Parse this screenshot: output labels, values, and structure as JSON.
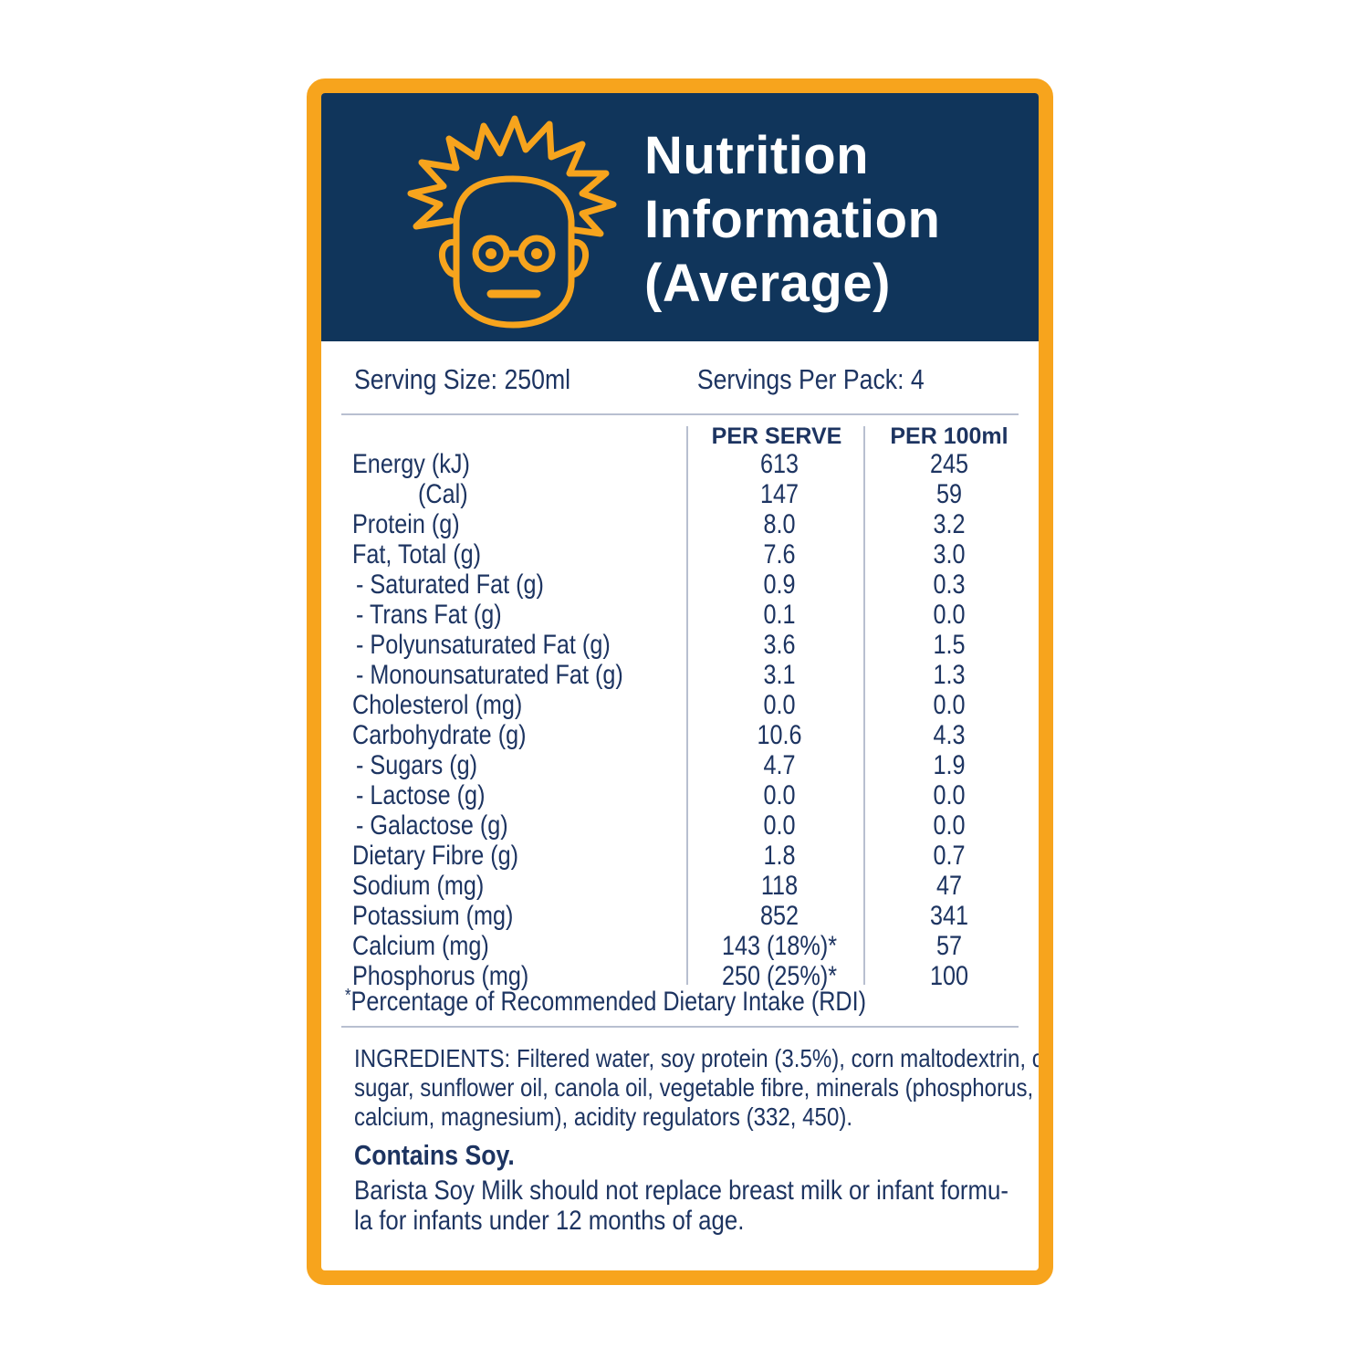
{
  "header": {
    "title_lines": [
      "Nutrition",
      "Information",
      "(Average)"
    ],
    "mascot_icon": "scientist-face-icon"
  },
  "colors": {
    "border": "#f7a41d",
    "header_bg": "#10355b",
    "text": "#1d3461",
    "mascot": "#f7a41d"
  },
  "serving": {
    "size": "Serving Size: 250ml",
    "per_pack": "Servings Per Pack: 4"
  },
  "columns": {
    "per_serve": "PER SERVE",
    "per_100ml": "PER 100ml"
  },
  "nutrients": [
    {
      "name": "Energy (kJ)",
      "per_serve": "613",
      "per_100ml": "245"
    },
    {
      "name": "(Cal)",
      "per_serve": "147",
      "per_100ml": "59"
    },
    {
      "name": "Protein (g)",
      "per_serve": "8.0",
      "per_100ml": "3.2"
    },
    {
      "name": "Fat, Total (g)",
      "per_serve": "7.6",
      "per_100ml": "3.0"
    },
    {
      "name": "- Saturated Fat (g)",
      "per_serve": "0.9",
      "per_100ml": "0.3"
    },
    {
      "name": "- Trans Fat (g)",
      "per_serve": "0.1",
      "per_100ml": "0.0"
    },
    {
      "name": "- Polyunsaturated Fat (g)",
      "per_serve": "3.6",
      "per_100ml": "1.5"
    },
    {
      "name": "- Monounsaturated Fat (g)",
      "per_serve": "3.1",
      "per_100ml": "1.3"
    },
    {
      "name": "Cholesterol (mg)",
      "per_serve": "0.0",
      "per_100ml": "0.0"
    },
    {
      "name": "Carbohydrate (g)",
      "per_serve": "10.6",
      "per_100ml": "4.3"
    },
    {
      "name": "- Sugars (g)",
      "per_serve": "4.7",
      "per_100ml": "1.9"
    },
    {
      "name": "- Lactose (g)",
      "per_serve": "0.0",
      "per_100ml": "0.0"
    },
    {
      "name": "- Galactose (g)",
      "per_serve": "0.0",
      "per_100ml": "0.0"
    },
    {
      "name": "Dietary Fibre (g)",
      "per_serve": "1.8",
      "per_100ml": "0.7"
    },
    {
      "name": "Sodium (mg)",
      "per_serve": "118",
      "per_100ml": "47"
    },
    {
      "name": "Potassium (mg)",
      "per_serve": "852",
      "per_100ml": "341"
    },
    {
      "name": "Calcium (mg)",
      "per_serve": "143 (18%)*",
      "per_100ml": "57"
    },
    {
      "name": "Phosphorus (mg)",
      "per_serve": "250 (25%)*",
      "per_100ml": "100"
    }
  ],
  "footnote": {
    "marker": "*",
    "text": "Percentage of Recommended Dietary Intake (RDI)"
  },
  "ingredients": [
    "INGREDIENTS: Filtered water, soy protein (3.5%), corn maltodextrin, cane",
    "sugar, sunflower oil, canola oil, vegetable fibre, minerals (phosphorus,",
    "calcium, magnesium), acidity regulators (332, 450)."
  ],
  "allergen": "Contains Soy.",
  "warning": [
    "Barista Soy Milk should not replace breast milk or infant formu-",
    "la for infants under 12 months of age."
  ]
}
